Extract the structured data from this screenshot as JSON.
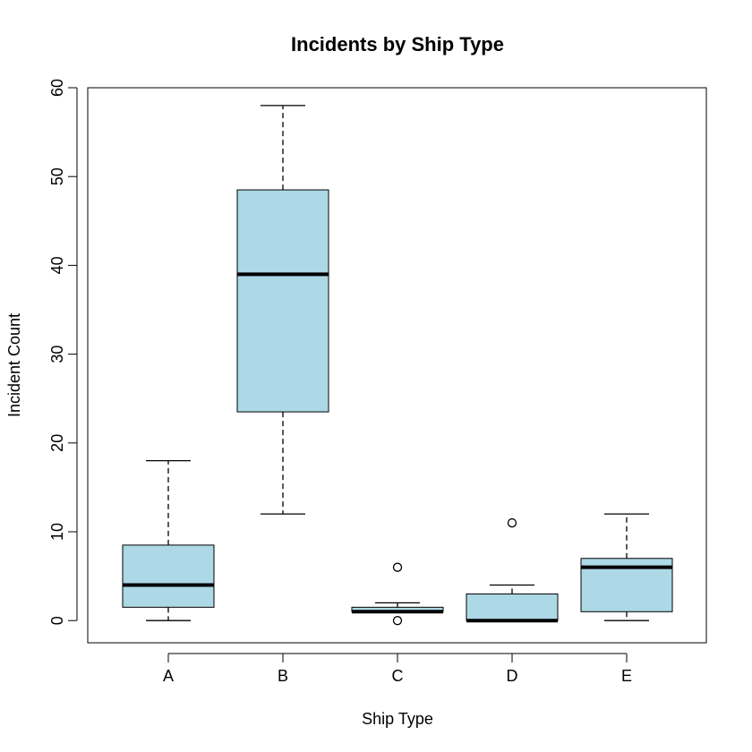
{
  "chart_data": {
    "type": "box",
    "title": "Incidents by Ship Type",
    "xlabel": "Ship Type",
    "ylabel": "Incident Count",
    "ylim": [
      -2.5,
      60
    ],
    "yticks": [
      0,
      10,
      20,
      30,
      40,
      50,
      60
    ],
    "box_color": "#add8e6",
    "grid": false,
    "series": [
      {
        "category": "A",
        "whisker_low": 0,
        "q1": 1.5,
        "median": 4,
        "q3": 8.5,
        "whisker_high": 18,
        "outliers": []
      },
      {
        "category": "B",
        "whisker_low": 12,
        "q1": 23.5,
        "median": 39,
        "q3": 48.5,
        "whisker_high": 58,
        "outliers": []
      },
      {
        "category": "C",
        "whisker_low": 1,
        "q1": 1,
        "median": 1,
        "q3": 1.5,
        "whisker_high": 2,
        "outliers": [
          6,
          0
        ]
      },
      {
        "category": "D",
        "whisker_low": 0,
        "q1": 0,
        "median": 0,
        "q3": 3,
        "whisker_high": 4,
        "outliers": [
          11
        ]
      },
      {
        "category": "E",
        "whisker_low": 0,
        "q1": 1,
        "median": 6,
        "q3": 7,
        "whisker_high": 12,
        "outliers": []
      }
    ]
  }
}
